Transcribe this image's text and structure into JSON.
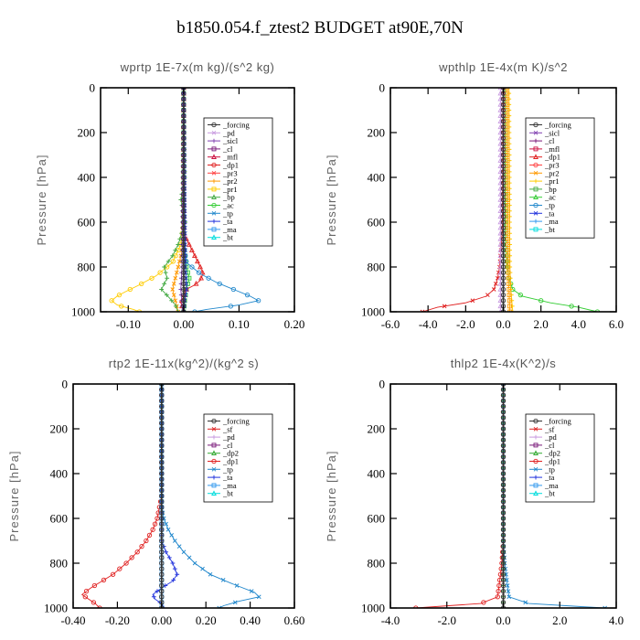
{
  "title": "b1850.054.f_ztest2  BUDGET at90E,70N",
  "colors": {
    "_forcing": "#333333",
    "_pd": "#c89ae0",
    "_sicl": "#8040b0",
    "_cl": "#7a1a7a",
    "_mfl": "#cc1040",
    "_dp1": "#e02020",
    "_pr3": "#ff4040",
    "_pr2": "#ff9900",
    "_pr1": "#ffcc00",
    "_bp": "#44aa44",
    "_ac": "#33cc33",
    "_tp": "#2288cc",
    "_ta": "#2233dd",
    "_ma": "#3399ee",
    "_bt": "#00dddd",
    "_sf": "#dd2222",
    "_dp2": "#33aa33"
  },
  "chart_data": [
    {
      "type": "line",
      "title": "wprtp  1E-7x(m kg)/(s^2 kg)",
      "ylabel": "Pressure [hPa]",
      "xlim": [
        -0.15,
        0.2
      ],
      "ylim": [
        1000,
        0
      ],
      "xticks": [
        "-0.10",
        "0.00",
        "0.10",
        "0.20"
      ],
      "xtick_values": [
        -0.1,
        0.0,
        0.1,
        0.2
      ],
      "yticks": [
        "0",
        "200",
        "400",
        "600",
        "800",
        "1000"
      ],
      "ytick_values": [
        0,
        200,
        400,
        600,
        800,
        1000
      ],
      "legend": [
        "_forcing",
        "_pd",
        "_sicl",
        "_cl",
        "_mfl",
        "_dp1",
        "_pr3",
        "_pr2",
        "_pr1",
        "_bp",
        "_ac",
        "_tp",
        "_ta",
        "_ma",
        "_bt"
      ],
      "legend_position": "top-right",
      "series": [
        {
          "name": "_pr1",
          "y": [
            0,
            600,
            700,
            780,
            840,
            880,
            910,
            930,
            950,
            970,
            990,
            1000
          ],
          "x": [
            0,
            0,
            -0.005,
            -0.02,
            -0.05,
            -0.08,
            -0.105,
            -0.12,
            -0.13,
            -0.12,
            -0.09,
            -0.08
          ]
        },
        {
          "name": "_pr2",
          "y": [
            0,
            700,
            800,
            900,
            950,
            1000
          ],
          "x": [
            0,
            0,
            -0.01,
            -0.02,
            -0.015,
            -0.01
          ]
        },
        {
          "name": "_bp",
          "y": [
            0,
            400,
            500,
            600,
            700,
            750,
            800,
            850,
            900,
            940,
            970,
            1000
          ],
          "x": [
            0,
            0.002,
            -0.005,
            0.003,
            -0.01,
            -0.02,
            -0.035,
            -0.03,
            -0.04,
            -0.025,
            -0.015,
            -0.01
          ]
        },
        {
          "name": "_ac",
          "y": [
            0,
            700,
            800,
            850,
            900,
            950,
            1000
          ],
          "x": [
            0,
            0,
            0.005,
            0.01,
            0.005,
            0.002,
            0
          ]
        },
        {
          "name": "_dp1",
          "y": [
            0,
            650,
            700,
            750,
            800,
            830,
            860,
            880,
            900,
            930,
            960,
            1000
          ],
          "x": [
            0,
            0,
            0.01,
            0.02,
            0.03,
            0.035,
            0.03,
            0.02,
            0.005,
            0,
            -0.005,
            0
          ]
        },
        {
          "name": "_tp",
          "y": [
            0,
            700,
            780,
            830,
            870,
            900,
            930,
            950,
            970,
            990,
            1000
          ],
          "x": [
            0,
            0,
            0.005,
            0.03,
            0.06,
            0.09,
            0.12,
            0.135,
            0.1,
            0.04,
            0.02
          ]
        },
        {
          "name": "_ta",
          "y": [
            0,
            800,
            900,
            950,
            1000
          ],
          "x": [
            0,
            0.003,
            0.005,
            0.002,
            0
          ]
        },
        {
          "name": "_sicl",
          "y": [
            0,
            800,
            900,
            1000
          ],
          "x": [
            0,
            -0.003,
            -0.005,
            -0.002
          ]
        },
        {
          "name": "_forcing",
          "y": [
            0,
            1000
          ],
          "x": [
            0,
            0
          ]
        }
      ]
    },
    {
      "type": "line",
      "title": "wpthlp  1E-4x(m K)/s^2",
      "ylabel": "Pressure [hPa]",
      "xlim": [
        -6.0,
        6.0
      ],
      "ylim": [
        1000,
        0
      ],
      "xticks": [
        "-6.0",
        "-4.0",
        "-2.0",
        "0.0",
        "2.0",
        "4.0",
        "6.0"
      ],
      "xtick_values": [
        -6,
        -4,
        -2,
        0,
        2,
        4,
        6
      ],
      "yticks": [
        "0",
        "200",
        "400",
        "600",
        "800",
        "1000"
      ],
      "ytick_values": [
        0,
        200,
        400,
        600,
        800,
        1000
      ],
      "legend": [
        "_forcing",
        "_sicl",
        "_cl",
        "_mfl",
        "_dp1",
        "_pr3",
        "_pr2",
        "_pr1",
        "_bp",
        "_ac",
        "_tp",
        "_ta",
        "_ma",
        "_bt"
      ],
      "legend_position": "top-right",
      "series": [
        {
          "name": "_ac",
          "y": [
            0,
            600,
            700,
            800,
            850,
            900,
            930,
            960,
            980,
            1000
          ],
          "x": [
            0.1,
            0.1,
            0.15,
            0.2,
            0.3,
            0.5,
            1.0,
            2.5,
            4.0,
            5.0
          ]
        },
        {
          "name": "_dp1",
          "y": [
            0,
            600,
            700,
            800,
            850,
            900,
            930,
            960,
            980,
            1000
          ],
          "x": [
            0,
            -0.05,
            -0.1,
            -0.2,
            -0.3,
            -0.5,
            -0.9,
            -2.0,
            -3.5,
            -4.3
          ]
        },
        {
          "name": "_pr1",
          "y": [
            0,
            800,
            900,
            1000
          ],
          "x": [
            0.3,
            0.35,
            0.4,
            0.5
          ]
        },
        {
          "name": "_pr2",
          "y": [
            0,
            800,
            900,
            1000
          ],
          "x": [
            0.2,
            0.25,
            0.3,
            0.35
          ]
        },
        {
          "name": "_pd",
          "y": [
            0,
            1000
          ],
          "x": [
            -0.15,
            -0.15
          ]
        },
        {
          "name": "_forcing",
          "y": [
            0,
            1000
          ],
          "x": [
            0,
            0
          ]
        }
      ]
    },
    {
      "type": "line",
      "title": "rtp2  1E-11x(kg^2)/(kg^2 s)",
      "ylabel": "Pressure [hPa]",
      "xlim": [
        -0.4,
        0.6
      ],
      "ylim": [
        1000,
        0
      ],
      "xticks": [
        "-0.40",
        "-0.20",
        "0.00",
        "0.20",
        "0.40",
        "0.60"
      ],
      "xtick_values": [
        -0.4,
        -0.2,
        0.0,
        0.2,
        0.4,
        0.6
      ],
      "yticks": [
        "0",
        "200",
        "400",
        "600",
        "800",
        "1000"
      ],
      "ytick_values": [
        0,
        200,
        400,
        600,
        800,
        1000
      ],
      "legend": [
        "_forcing",
        "_sf",
        "_pd",
        "_cl",
        "_dp2",
        "_dp1",
        "_tp",
        "_ta",
        "_ma",
        "_bt"
      ],
      "legend_position": "top-right",
      "series": [
        {
          "name": "_dp1",
          "y": [
            0,
            500,
            550,
            600,
            650,
            700,
            750,
            800,
            850,
            880,
            910,
            940,
            960,
            980,
            1000
          ],
          "x": [
            0,
            0,
            -0.01,
            -0.02,
            -0.04,
            -0.07,
            -0.11,
            -0.16,
            -0.22,
            -0.27,
            -0.32,
            -0.36,
            -0.33,
            -0.3,
            -0.28
          ]
        },
        {
          "name": "_tp",
          "y": [
            0,
            550,
            600,
            650,
            700,
            750,
            800,
            850,
            880,
            900,
            930,
            950,
            970,
            990,
            1000
          ],
          "x": [
            0,
            0,
            0.01,
            0.03,
            0.06,
            0.1,
            0.15,
            0.22,
            0.29,
            0.34,
            0.42,
            0.44,
            0.35,
            0.28,
            0.26
          ]
        },
        {
          "name": "_ta",
          "y": [
            0,
            700,
            750,
            800,
            850,
            880,
            910,
            940,
            960,
            980,
            1000
          ],
          "x": [
            0,
            0,
            0.02,
            0.05,
            0.07,
            0.05,
            0.0,
            -0.04,
            -0.03,
            0,
            0.01
          ]
        },
        {
          "name": "_ma",
          "y": [
            0,
            1000
          ],
          "x": [
            0,
            0
          ]
        },
        {
          "name": "_forcing",
          "y": [
            0,
            1000
          ],
          "x": [
            0,
            0
          ]
        }
      ]
    },
    {
      "type": "line",
      "title": "thlp2  1E-4x(K^2)/s",
      "ylabel": "Pressure [hPa]",
      "xlim": [
        -4.0,
        4.0
      ],
      "ylim": [
        1000,
        0
      ],
      "xticks": [
        "-4.0",
        "-2.0",
        "0.0",
        "2.0",
        "4.0"
      ],
      "xtick_values": [
        -4,
        -2,
        0,
        2,
        4
      ],
      "yticks": [
        "0",
        "200",
        "400",
        "600",
        "800",
        "1000"
      ],
      "ytick_values": [
        0,
        200,
        400,
        600,
        800,
        1000
      ],
      "legend": [
        "_forcing",
        "_sf",
        "_pd",
        "_cl",
        "_dp2",
        "_dp1",
        "_tp",
        "_ta",
        "_ma",
        "_bt"
      ],
      "legend_position": "top-right",
      "series": [
        {
          "name": "_dp1",
          "y": [
            0,
            700,
            800,
            900,
            950,
            980,
            1000
          ],
          "x": [
            0,
            0,
            -0.05,
            -0.15,
            -0.2,
            -0.8,
            -3.1
          ]
        },
        {
          "name": "_tp",
          "y": [
            0,
            700,
            800,
            900,
            950,
            980,
            1000
          ],
          "x": [
            0,
            0,
            0.05,
            0.15,
            0.2,
            0.9,
            3.6
          ]
        },
        {
          "name": "_dp2",
          "y": [
            0,
            1000
          ],
          "x": [
            0,
            0
          ]
        },
        {
          "name": "_forcing",
          "y": [
            0,
            1000
          ],
          "x": [
            0,
            0
          ]
        }
      ]
    }
  ]
}
